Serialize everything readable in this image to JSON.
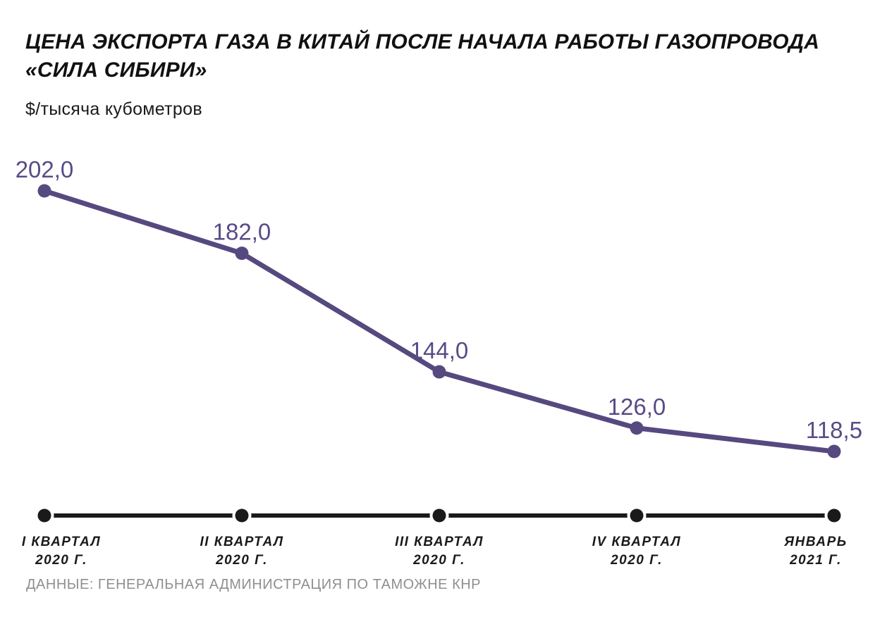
{
  "header": {
    "title": "ЦЕНА ЭКСПОРТА ГАЗА В КИТАЙ ПОСЛЕ НАЧАЛА РАБОТЫ ГАЗОПРОВОДА\n«СИЛА СИБИРИ»",
    "unit_label": "$/тысяча кубометров"
  },
  "footer": {
    "source": "ДАННЫЕ: ГЕНЕРАЛЬНАЯ АДМИНИСТРАЦИЯ ПО ТАМОЖНЕ КНР"
  },
  "chart_data": {
    "type": "line",
    "title": "ЦЕНА ЭКСПОРТА ГАЗА В КИТАЙ ПОСЛЕ НАЧАЛА РАБОТЫ ГАЗОПРОВОДА «СИЛА СИБИРИ»",
    "ylabel": "$/тысяча кубометров",
    "categories": [
      "I КВАРТАЛ\n2020 Г.",
      "II КВАРТАЛ\n2020 Г.",
      "III КВАРТАЛ\n2020 Г.",
      "IV КВАРТАЛ\n2020 Г.",
      "ЯНВАРЬ\n2021 Г."
    ],
    "values": [
      202.0,
      182.0,
      144.0,
      126.0,
      118.5
    ],
    "value_labels": [
      "202,0",
      "182,0",
      "144,0",
      "126,0",
      "118,5"
    ],
    "ylim": [
      118.5,
      202.0
    ],
    "grid": false,
    "legend": false,
    "colors": {
      "line": "#56497F",
      "point": "#56497F",
      "value_label": "#584B86",
      "axis": "#1A1A1A",
      "category_label": "#1A1A1A",
      "source_text": "#8F8F8F"
    }
  }
}
